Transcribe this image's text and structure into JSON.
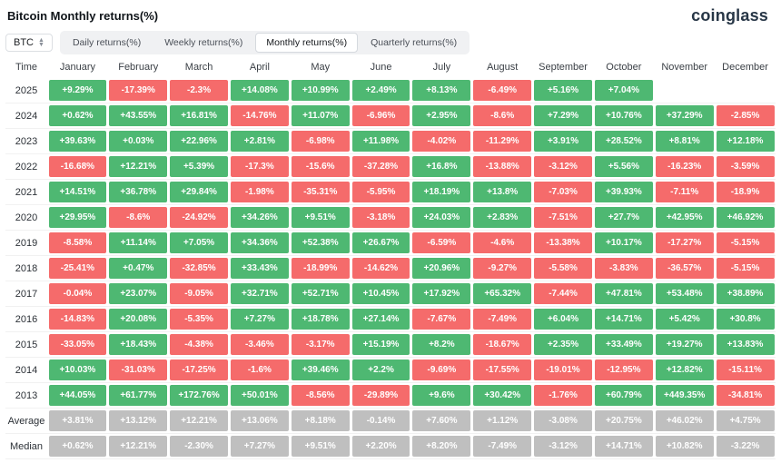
{
  "header": {
    "title": "Bitcoin Monthly returns(%)",
    "logo": "coinglass"
  },
  "toolbar": {
    "symbol": "BTC",
    "tabs": [
      {
        "label": "Daily returns(%)",
        "active": false
      },
      {
        "label": "Weekly returns(%)",
        "active": false
      },
      {
        "label": "Monthly returns(%)",
        "active": true
      },
      {
        "label": "Quarterly returns(%)",
        "active": false
      }
    ]
  },
  "colors": {
    "positive": "#4eb872",
    "negative": "#f56b6b",
    "stat": "#bfbfbf"
  },
  "chart_data": {
    "type": "heatmap",
    "title": "Bitcoin Monthly returns(%)",
    "columns": [
      "Time",
      "January",
      "February",
      "March",
      "April",
      "May",
      "June",
      "July",
      "August",
      "September",
      "October",
      "November",
      "December"
    ],
    "rows": [
      {
        "label": "2025",
        "type": "year",
        "values": [
          "+9.29%",
          "-17.39%",
          "-2.3%",
          "+14.08%",
          "+10.99%",
          "+2.49%",
          "+8.13%",
          "-6.49%",
          "+5.16%",
          "+7.04%",
          "",
          ""
        ]
      },
      {
        "label": "2024",
        "type": "year",
        "values": [
          "+0.62%",
          "+43.55%",
          "+16.81%",
          "-14.76%",
          "+11.07%",
          "-6.96%",
          "+2.95%",
          "-8.6%",
          "+7.29%",
          "+10.76%",
          "+37.29%",
          "-2.85%"
        ]
      },
      {
        "label": "2023",
        "type": "year",
        "values": [
          "+39.63%",
          "+0.03%",
          "+22.96%",
          "+2.81%",
          "-6.98%",
          "+11.98%",
          "-4.02%",
          "-11.29%",
          "+3.91%",
          "+28.52%",
          "+8.81%",
          "+12.18%"
        ]
      },
      {
        "label": "2022",
        "type": "year",
        "values": [
          "-16.68%",
          "+12.21%",
          "+5.39%",
          "-17.3%",
          "-15.6%",
          "-37.28%",
          "+16.8%",
          "-13.88%",
          "-3.12%",
          "+5.56%",
          "-16.23%",
          "-3.59%"
        ]
      },
      {
        "label": "2021",
        "type": "year",
        "values": [
          "+14.51%",
          "+36.78%",
          "+29.84%",
          "-1.98%",
          "-35.31%",
          "-5.95%",
          "+18.19%",
          "+13.8%",
          "-7.03%",
          "+39.93%",
          "-7.11%",
          "-18.9%"
        ]
      },
      {
        "label": "2020",
        "type": "year",
        "values": [
          "+29.95%",
          "-8.6%",
          "-24.92%",
          "+34.26%",
          "+9.51%",
          "-3.18%",
          "+24.03%",
          "+2.83%",
          "-7.51%",
          "+27.7%",
          "+42.95%",
          "+46.92%"
        ]
      },
      {
        "label": "2019",
        "type": "year",
        "values": [
          "-8.58%",
          "+11.14%",
          "+7.05%",
          "+34.36%",
          "+52.38%",
          "+26.67%",
          "-6.59%",
          "-4.6%",
          "-13.38%",
          "+10.17%",
          "-17.27%",
          "-5.15%"
        ]
      },
      {
        "label": "2018",
        "type": "year",
        "values": [
          "-25.41%",
          "+0.47%",
          "-32.85%",
          "+33.43%",
          "-18.99%",
          "-14.62%",
          "+20.96%",
          "-9.27%",
          "-5.58%",
          "-3.83%",
          "-36.57%",
          "-5.15%"
        ]
      },
      {
        "label": "2017",
        "type": "year",
        "values": [
          "-0.04%",
          "+23.07%",
          "-9.05%",
          "+32.71%",
          "+52.71%",
          "+10.45%",
          "+17.92%",
          "+65.32%",
          "-7.44%",
          "+47.81%",
          "+53.48%",
          "+38.89%"
        ]
      },
      {
        "label": "2016",
        "type": "year",
        "values": [
          "-14.83%",
          "+20.08%",
          "-5.35%",
          "+7.27%",
          "+18.78%",
          "+27.14%",
          "-7.67%",
          "-7.49%",
          "+6.04%",
          "+14.71%",
          "+5.42%",
          "+30.8%"
        ]
      },
      {
        "label": "2015",
        "type": "year",
        "values": [
          "-33.05%",
          "+18.43%",
          "-4.38%",
          "-3.46%",
          "-3.17%",
          "+15.19%",
          "+8.2%",
          "-18.67%",
          "+2.35%",
          "+33.49%",
          "+19.27%",
          "+13.83%"
        ]
      },
      {
        "label": "2014",
        "type": "year",
        "values": [
          "+10.03%",
          "-31.03%",
          "-17.25%",
          "-1.6%",
          "+39.46%",
          "+2.2%",
          "-9.69%",
          "-17.55%",
          "-19.01%",
          "-12.95%",
          "+12.82%",
          "-15.11%"
        ]
      },
      {
        "label": "2013",
        "type": "year",
        "values": [
          "+44.05%",
          "+61.77%",
          "+172.76%",
          "+50.01%",
          "-8.56%",
          "-29.89%",
          "+9.6%",
          "+30.42%",
          "-1.76%",
          "+60.79%",
          "+449.35%",
          "-34.81%"
        ]
      },
      {
        "label": "Average",
        "type": "stat",
        "values": [
          "+3.81%",
          "+13.12%",
          "+12.21%",
          "+13.06%",
          "+8.18%",
          "-0.14%",
          "+7.60%",
          "+1.12%",
          "-3.08%",
          "+20.75%",
          "+46.02%",
          "+4.75%"
        ]
      },
      {
        "label": "Median",
        "type": "stat",
        "values": [
          "+0.62%",
          "+12.21%",
          "-2.30%",
          "+7.27%",
          "+9.51%",
          "+2.20%",
          "+8.20%",
          "-7.49%",
          "-3.12%",
          "+14.71%",
          "+10.82%",
          "-3.22%"
        ]
      }
    ]
  }
}
